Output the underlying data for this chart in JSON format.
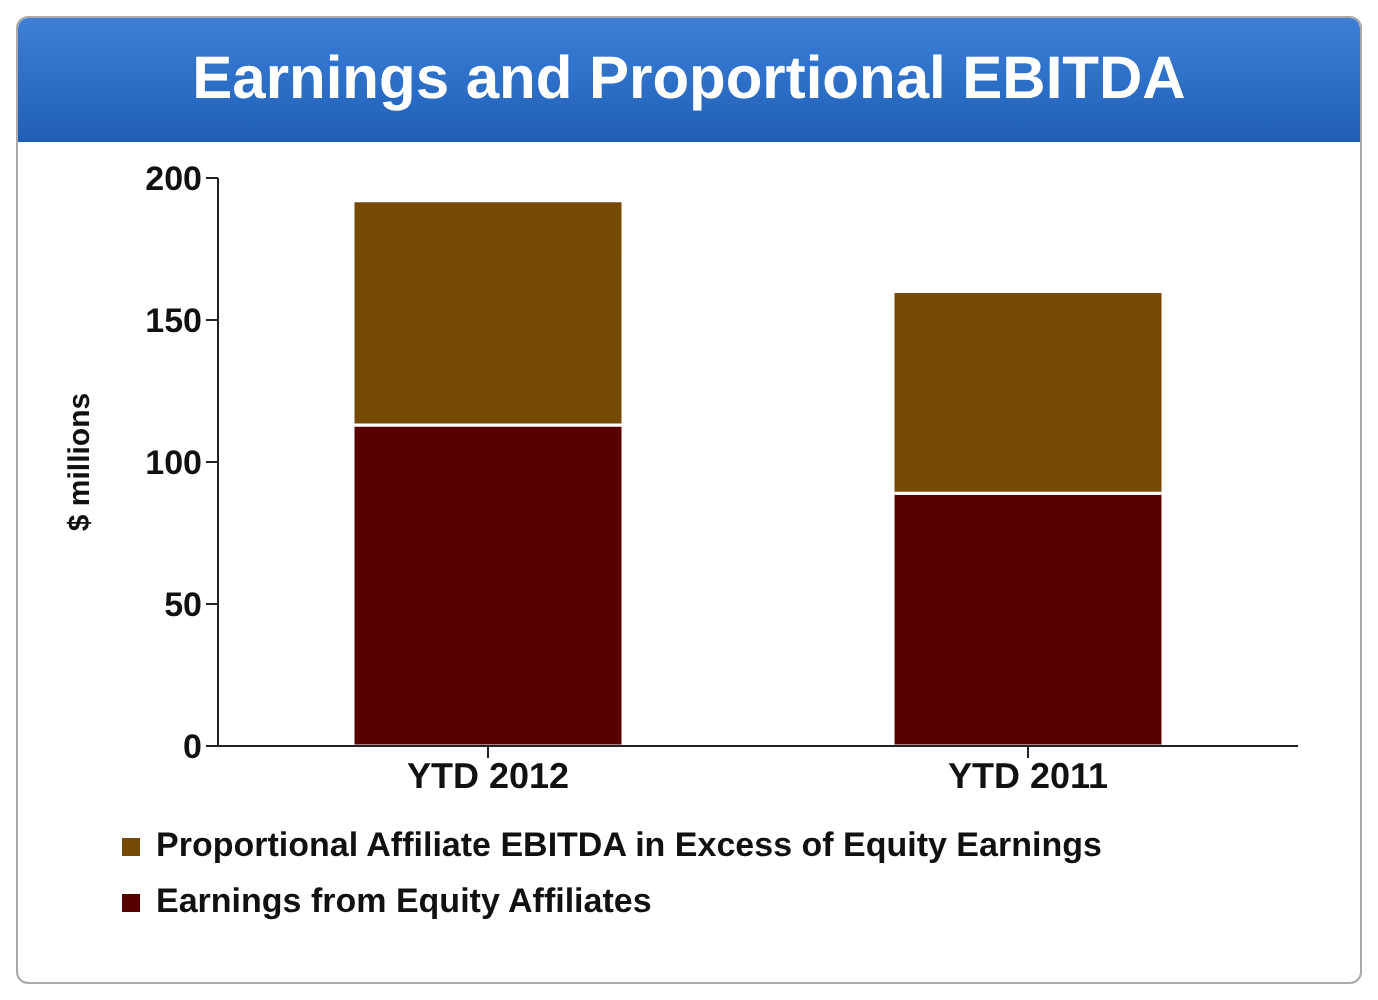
{
  "chart_data": {
    "type": "bar",
    "title": "Earnings and Proportional EBITDA",
    "ylabel": "$ millions",
    "categories": [
      "YTD 2012",
      "YTD 2011"
    ],
    "stacked": true,
    "series": [
      {
        "name": "Earnings from Equity Affiliates",
        "color": "#560000",
        "values": [
          113,
          89
        ]
      },
      {
        "name": "Proportional Affiliate EBITDA in Excess of Equity Earnings",
        "color": "#754a04",
        "values": [
          79,
          71
        ]
      }
    ],
    "ylim": [
      0,
      200
    ],
    "yticks": [
      0,
      50,
      100,
      150,
      200
    ],
    "grid": false,
    "legend": "bottom"
  }
}
